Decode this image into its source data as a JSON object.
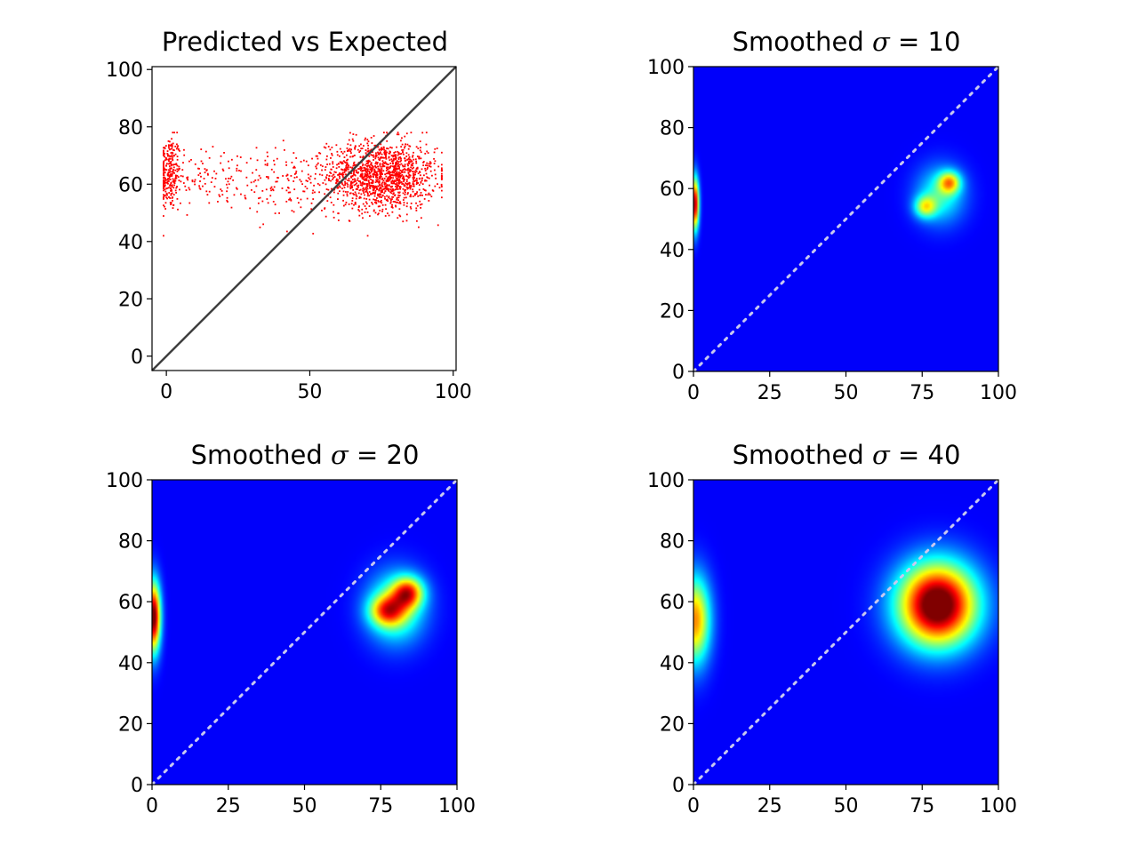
{
  "chart_data": [
    {
      "panel": "scatter",
      "type": "scatter",
      "title": "Predicted vs Expected",
      "xlabel": "",
      "ylabel": "",
      "xlim": [
        -5,
        101
      ],
      "ylim": [
        -5,
        101
      ],
      "xticks": [
        0,
        50,
        100
      ],
      "yticks": [
        0,
        20,
        40,
        60,
        80,
        100
      ],
      "point_color": "#ff0000",
      "reference_line": {
        "from": [
          -5,
          -5
        ],
        "to": [
          101,
          101
        ],
        "color": "#3f3f3f"
      },
      "point_clusters": [
        {
          "x_center": 1,
          "x_spread": 2.0,
          "y_center": 64,
          "y_spread": 6.5,
          "count": 260
        },
        {
          "x_center": 14,
          "x_spread": 9.0,
          "y_center": 62,
          "y_spread": 5.5,
          "count": 120
        },
        {
          "x_center": 42,
          "x_spread": 10.0,
          "y_center": 60,
          "y_spread": 6.0,
          "count": 140
        },
        {
          "x_center": 75,
          "x_spread": 9.5,
          "y_center": 63,
          "y_spread": 6.0,
          "count": 1400
        }
      ]
    },
    {
      "panel": "smoothed-10",
      "type": "heatmap",
      "title_prefix": "Smoothed ",
      "title_symbol": "σ",
      "title_suffix": " = 10",
      "sigma": 10,
      "colormap": "jet",
      "xlim": [
        0,
        100
      ],
      "ylim": [
        0,
        100
      ],
      "xticks": [
        0,
        25,
        50,
        75,
        100
      ],
      "yticks": [
        0,
        20,
        40,
        60,
        80,
        100
      ],
      "diagonal": {
        "style": "dotted",
        "color": "#c8c8f0"
      },
      "density_peaks": [
        {
          "x": 0.5,
          "y": 55,
          "sx": 0.9,
          "sy": 6,
          "intensity": 0.85
        },
        {
          "x": 84,
          "y": 62,
          "sx": 2.5,
          "sy": 2.5,
          "intensity": 0.45
        },
        {
          "x": 76,
          "y": 54,
          "sx": 2.5,
          "sy": 2.5,
          "intensity": 0.38
        },
        {
          "x": 81,
          "y": 58,
          "sx": 5.5,
          "sy": 6.5,
          "intensity": 0.3
        }
      ]
    },
    {
      "panel": "smoothed-20",
      "type": "heatmap",
      "title_prefix": "Smoothed ",
      "title_symbol": "σ",
      "title_suffix": " = 20",
      "sigma": 20,
      "colormap": "jet",
      "xlim": [
        0,
        100
      ],
      "ylim": [
        0,
        100
      ],
      "xticks": [
        0,
        25,
        50,
        75,
        100
      ],
      "yticks": [
        0,
        20,
        40,
        60,
        80,
        100
      ],
      "diagonal": {
        "style": "dotted",
        "color": "#c8c8f0"
      },
      "density_peaks": [
        {
          "x": 0.5,
          "y": 55,
          "sx": 1.6,
          "sy": 8,
          "intensity": 0.92
        },
        {
          "x": 84,
          "y": 63,
          "sx": 3.5,
          "sy": 3.5,
          "intensity": 0.55
        },
        {
          "x": 77,
          "y": 57,
          "sx": 4,
          "sy": 3.5,
          "intensity": 0.45
        },
        {
          "x": 80,
          "y": 58,
          "sx": 6.5,
          "sy": 8,
          "intensity": 0.4
        }
      ]
    },
    {
      "panel": "smoothed-40",
      "type": "heatmap",
      "title_prefix": "Smoothed ",
      "title_symbol": "σ",
      "title_suffix": " = 40",
      "sigma": 40,
      "colormap": "jet",
      "xlim": [
        0,
        100
      ],
      "ylim": [
        0,
        100
      ],
      "xticks": [
        0,
        25,
        50,
        75,
        100
      ],
      "yticks": [
        0,
        20,
        40,
        60,
        80,
        100
      ],
      "diagonal": {
        "style": "dotted",
        "color": "#c8c8f0"
      },
      "density_peaks": [
        {
          "x": 80,
          "y": 59,
          "sx": 9,
          "sy": 9.5,
          "intensity": 1.0
        },
        {
          "x": 0.5,
          "y": 54,
          "sx": 3.5,
          "sy": 10,
          "intensity": 0.62
        }
      ]
    }
  ]
}
